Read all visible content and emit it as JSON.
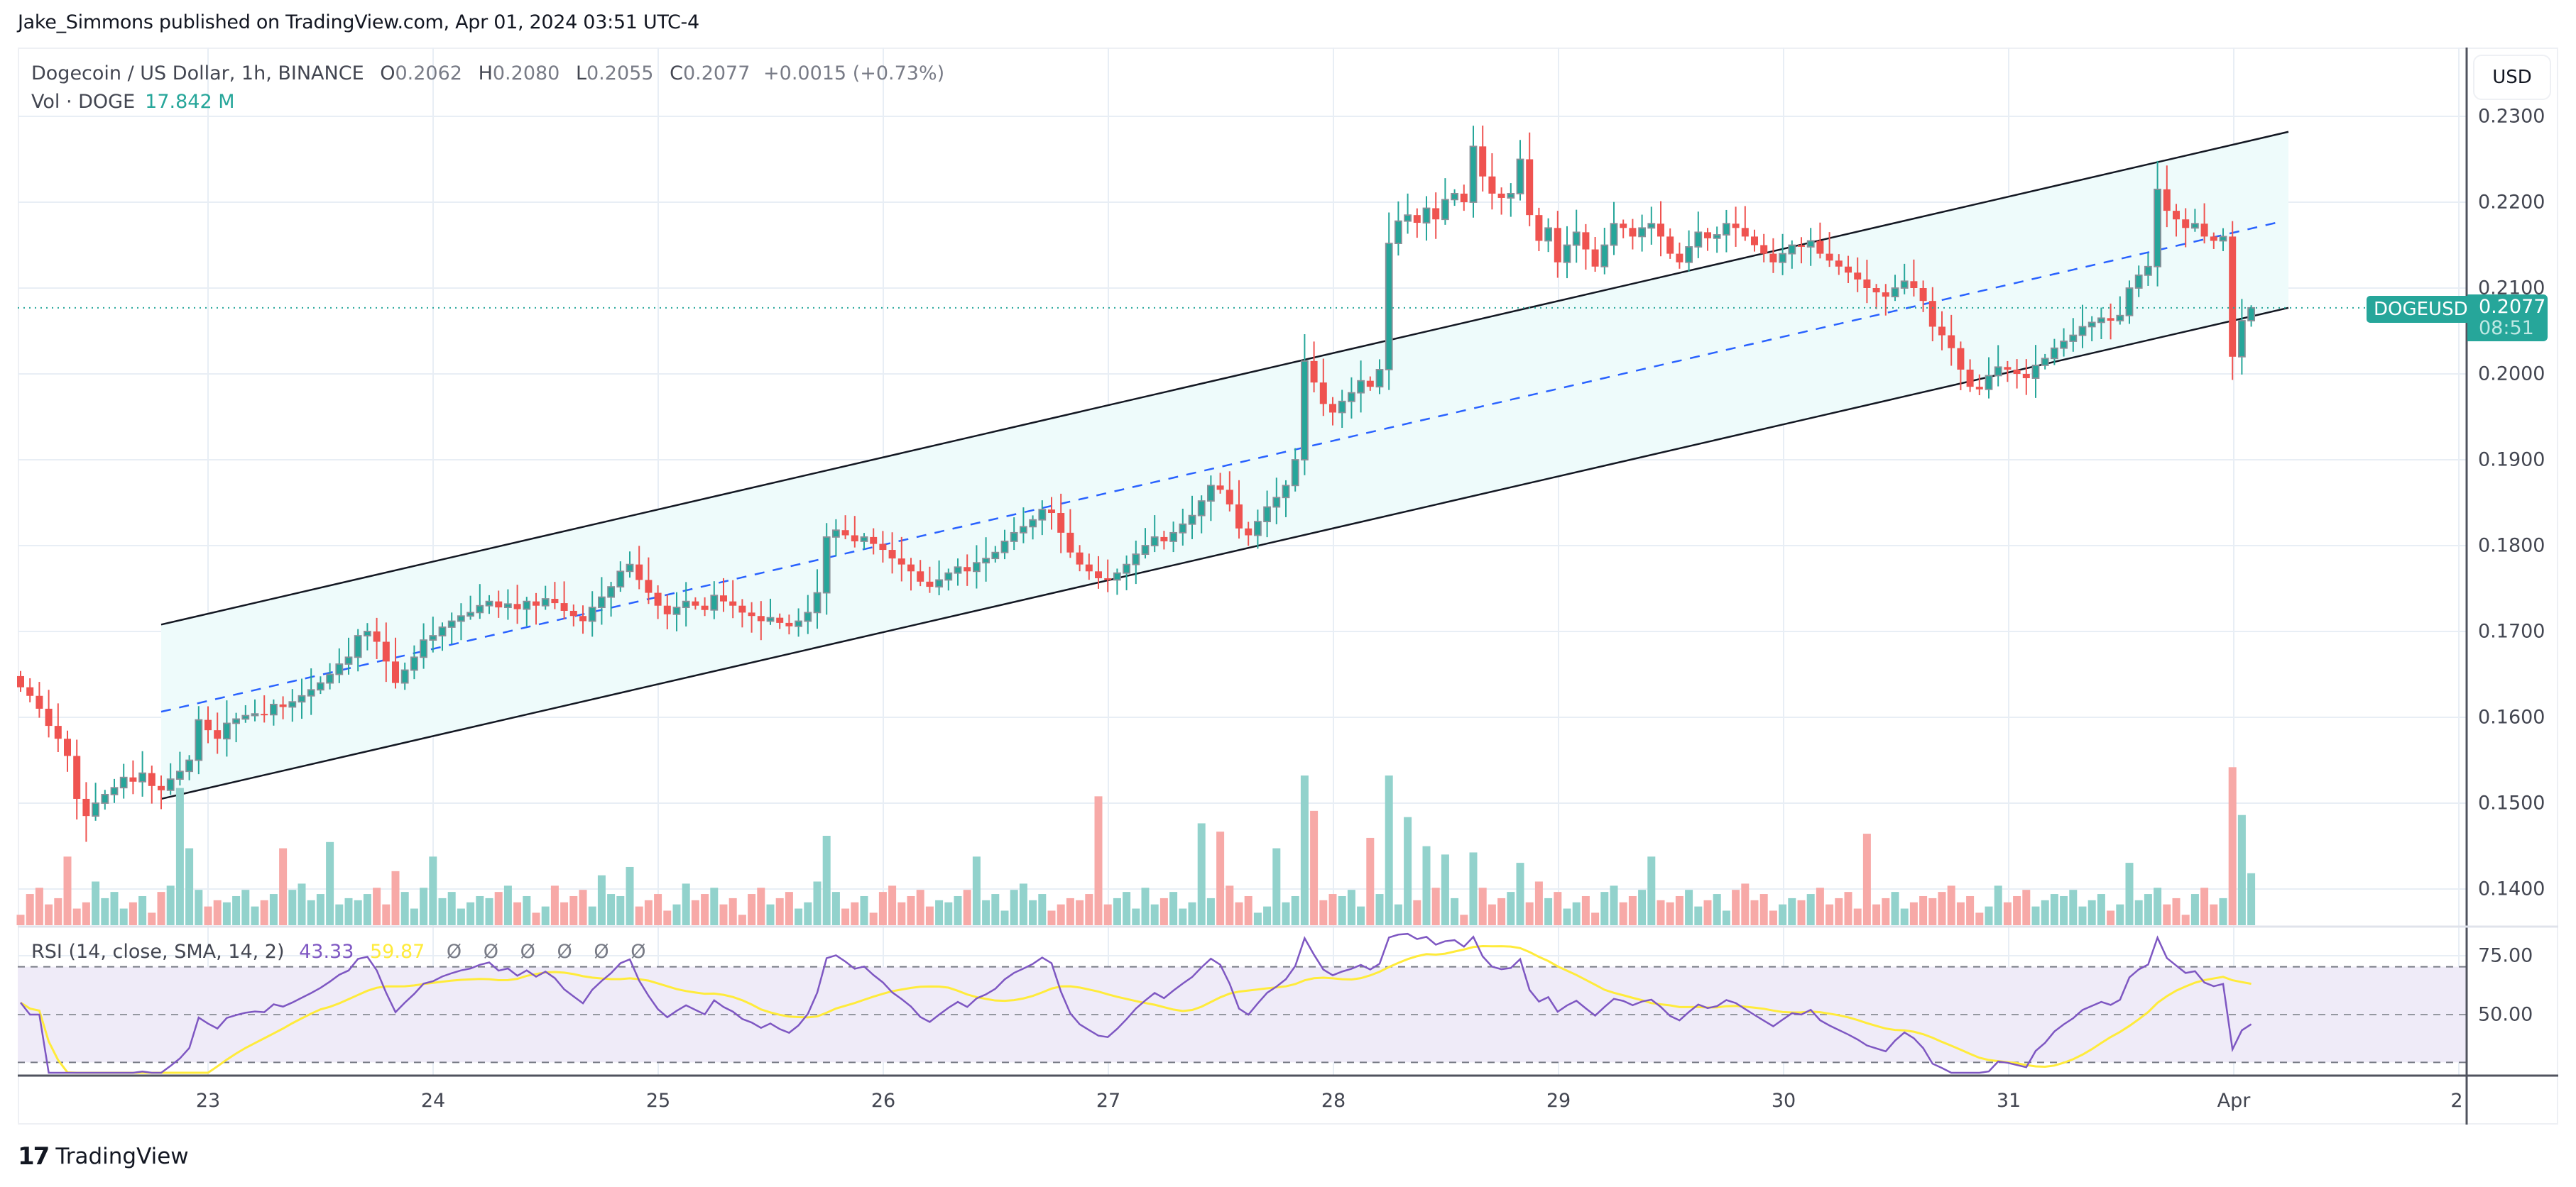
{
  "header": {
    "published_line": "Jake_Simmons published on TradingView.com, Apr 01, 2024 03:51 UTC-4"
  },
  "legend": {
    "symbol_line": "Dogecoin / US Dollar, 1h, BINANCE",
    "open_label": "O",
    "open": "0.2062",
    "high_label": "H",
    "high": "0.2080",
    "low_label": "L",
    "low": "0.2055",
    "close_label": "C",
    "close": "0.2077",
    "change": "+0.0015 (+0.73%)",
    "volume_label": "Vol · DOGE",
    "volume_value": "17.842 M"
  },
  "rsi_legend": {
    "label": "RSI (14, close, SMA, 14, 2)",
    "rsi_value": "43.33",
    "sma_value": "59.87",
    "na_values": [
      "Ø",
      "Ø",
      "Ø",
      "Ø",
      "Ø",
      "Ø"
    ]
  },
  "price_axis": {
    "currency_button": "USD",
    "ticks": [
      "0.2300",
      "0.2200",
      "0.2100",
      "0.2000",
      "0.1900",
      "0.1800",
      "0.1700",
      "0.1600",
      "0.1500",
      "0.1400"
    ]
  },
  "rsi_axis": {
    "ticks": [
      "75.00",
      "50.00"
    ]
  },
  "time_axis": {
    "ticks": [
      "23",
      "24",
      "25",
      "26",
      "27",
      "28",
      "29",
      "30",
      "31",
      "Apr",
      "2"
    ]
  },
  "last_price": {
    "symbol_tag": "DOGEUSD",
    "price": "0.2077",
    "countdown": "08:51"
  },
  "footer": {
    "brand_mark": "17",
    "brand_name": "TradingView"
  },
  "colors": {
    "up": "#26a69a",
    "down": "#ef5350",
    "up_border": "#8a8f98",
    "vol_up": "#92d2cc",
    "vol_down": "#f7a9a7",
    "rsi": "#7e57c2",
    "rsi_sma": "#ffeb3b",
    "rsi_band": "#efebf8",
    "channel_line": "#131722",
    "channel_mid": "#2962ff",
    "channel_fill": "#eefbfb",
    "grid": "#e8eef5"
  },
  "chart_data": {
    "type": "candlestick",
    "title": "Dogecoin / US Dollar, 1h, BINANCE",
    "xlabel": "",
    "ylabel": "USD",
    "ylim": [
      0.1385,
      0.235
    ],
    "grid": true,
    "x_ticks": [
      "23",
      "24",
      "25",
      "26",
      "27",
      "28",
      "29",
      "30",
      "31",
      "Apr",
      "2"
    ],
    "y_ticks": [
      0.23,
      0.22,
      0.21,
      0.2,
      0.19,
      0.18,
      0.17,
      0.16,
      0.15,
      0.14
    ],
    "interval": "1h",
    "closes": [
      0.1635,
      0.1625,
      0.161,
      0.159,
      0.1575,
      0.1555,
      0.1505,
      0.1485,
      0.15,
      0.151,
      0.1518,
      0.153,
      0.1525,
      0.1535,
      0.152,
      0.1515,
      0.1528,
      0.1537,
      0.155,
      0.1597,
      0.1585,
      0.1575,
      0.1593,
      0.1598,
      0.1602,
      0.1604,
      0.1603,
      0.1615,
      0.1612,
      0.1618,
      0.1625,
      0.1632,
      0.164,
      0.165,
      0.1662,
      0.167,
      0.1695,
      0.17,
      0.1688,
      0.1665,
      0.164,
      0.1655,
      0.167,
      0.169,
      0.1695,
      0.1705,
      0.1712,
      0.1718,
      0.1722,
      0.173,
      0.1735,
      0.1728,
      0.1732,
      0.1726,
      0.1735,
      0.173,
      0.1738,
      0.1733,
      0.1724,
      0.1718,
      0.1712,
      0.1728,
      0.174,
      0.1752,
      0.177,
      0.1778,
      0.176,
      0.1745,
      0.173,
      0.172,
      0.1728,
      0.1735,
      0.173,
      0.1725,
      0.1742,
      0.1735,
      0.173,
      0.1722,
      0.1718,
      0.1712,
      0.1716,
      0.171,
      0.1706,
      0.1712,
      0.1722,
      0.1745,
      0.181,
      0.1818,
      0.1812,
      0.1805,
      0.181,
      0.1802,
      0.1795,
      0.1785,
      0.1778,
      0.177,
      0.1758,
      0.1752,
      0.176,
      0.1768,
      0.1775,
      0.177,
      0.178,
      0.1785,
      0.1792,
      0.1805,
      0.1815,
      0.1822,
      0.183,
      0.1842,
      0.1838,
      0.1815,
      0.1792,
      0.1778,
      0.177,
      0.1762,
      0.176,
      0.1768,
      0.1778,
      0.179,
      0.18,
      0.181,
      0.1805,
      0.1815,
      0.1825,
      0.1835,
      0.1852,
      0.187,
      0.1865,
      0.1848,
      0.182,
      0.1812,
      0.1828,
      0.1845,
      0.1856,
      0.187,
      0.19,
      0.2015,
      0.199,
      0.1965,
      0.1955,
      0.1968,
      0.1978,
      0.1992,
      0.1985,
      0.2005,
      0.2152,
      0.2178,
      0.2185,
      0.2176,
      0.2193,
      0.218,
      0.2203,
      0.221,
      0.22,
      0.2265,
      0.223,
      0.221,
      0.2205,
      0.221,
      0.225,
      0.2185,
      0.2155,
      0.217,
      0.213,
      0.215,
      0.2165,
      0.2145,
      0.2125,
      0.215,
      0.2175,
      0.217,
      0.216,
      0.217,
      0.2175,
      0.216,
      0.214,
      0.213,
      0.2148,
      0.2165,
      0.2158,
      0.2162,
      0.2175,
      0.217,
      0.216,
      0.215,
      0.214,
      0.213,
      0.214,
      0.215,
      0.2148,
      0.2155,
      0.214,
      0.2132,
      0.2125,
      0.2118,
      0.211,
      0.21,
      0.2095,
      0.209,
      0.21,
      0.2108,
      0.21,
      0.2085,
      0.2055,
      0.2045,
      0.203,
      0.2005,
      0.1985,
      0.1982,
      0.1998,
      0.2008,
      0.2005,
      0.2,
      0.1995,
      0.201,
      0.2018,
      0.203,
      0.2038,
      0.2045,
      0.2055,
      0.206,
      0.2065,
      0.2062,
      0.2068,
      0.21,
      0.2115,
      0.2125,
      0.2215,
      0.219,
      0.218,
      0.217,
      0.2175,
      0.216,
      0.2155,
      0.216,
      0.202,
      0.2062,
      0.2077
    ],
    "first_open": 0.1648,
    "notable_extremes": {
      "peak_high": 0.2289,
      "mar31_high": 0.2248,
      "apr1_low": 0.1993,
      "mar22_low": 0.1455,
      "last_high": 0.208,
      "last_low": 0.2055
    },
    "volume_relative": {
      "scale_max": 100,
      "spikes": {
        "5": 33,
        "17": 66,
        "18": 37,
        "28": 37,
        "33": 40,
        "40": 26,
        "44": 33,
        "62": 24,
        "65": 28,
        "86": 43,
        "102": 33,
        "115": 62,
        "126": 49,
        "128": 45,
        "134": 37,
        "137": 72,
        "138": 55,
        "144": 42,
        "146": 72,
        "148": 52,
        "150": 38,
        "152": 34,
        "155": 35,
        "160": 30,
        "174": 33,
        "197": 44,
        "225": 30,
        "236": 76,
        "237": 53,
        "238": 25
      }
    },
    "channel": {
      "type": "parallel_channel",
      "upper": {
        "from_price": 0.1708,
        "to_price": 0.2282
      },
      "lower": {
        "from_price": 0.1505,
        "to_price": 0.2077
      },
      "median_dashed": true,
      "start_day": "22",
      "end_day": "Apr 1"
    },
    "indicator": {
      "name": "RSI",
      "params": "14, close, SMA, 14, 2",
      "rsi_last": 43.33,
      "sma_last": 59.87,
      "bands": [
        70,
        50,
        30
      ],
      "axis_ticks": [
        75,
        50
      ]
    },
    "last_price": 0.2077
  }
}
